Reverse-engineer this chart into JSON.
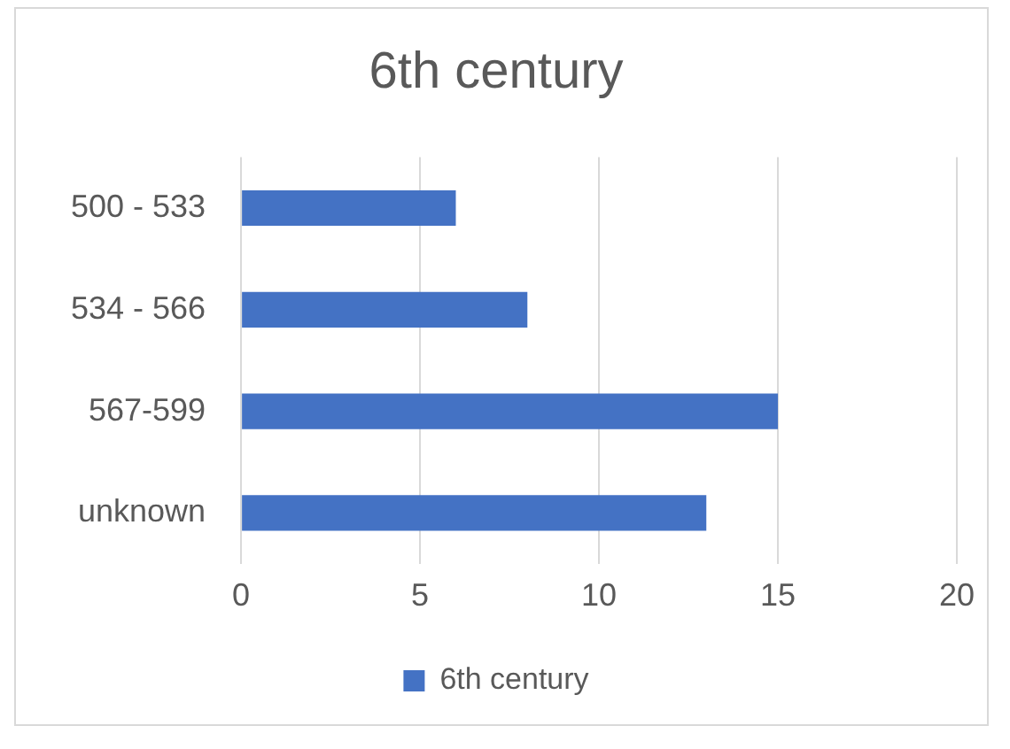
{
  "chart_data": {
    "type": "bar",
    "title": "6th century",
    "orientation": "horizontal",
    "categories": [
      "500 - 533",
      "534 - 566",
      "567-599",
      "unknown"
    ],
    "series": [
      {
        "name": "6th century",
        "color": "#4472c4",
        "values": [
          6,
          8,
          15,
          13
        ]
      }
    ],
    "xlim": [
      0,
      20
    ],
    "xticks": [
      0,
      5,
      10,
      15,
      20
    ],
    "grid": "x",
    "legend": "bottom"
  }
}
